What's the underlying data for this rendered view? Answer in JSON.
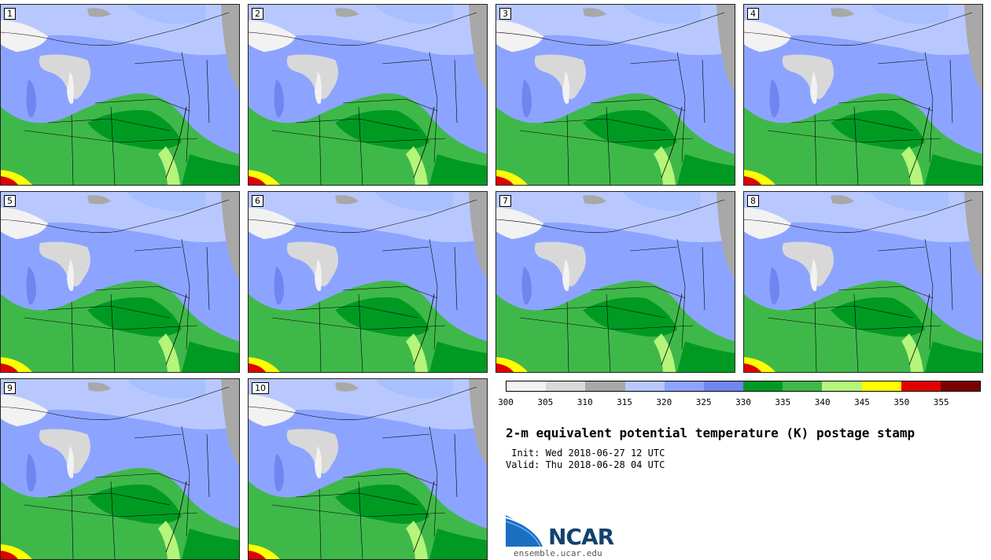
{
  "panels": [
    {
      "label": "1"
    },
    {
      "label": "2"
    },
    {
      "label": "3"
    },
    {
      "label": "4"
    },
    {
      "label": "5"
    },
    {
      "label": "6"
    },
    {
      "label": "7"
    },
    {
      "label": "8"
    },
    {
      "label": "9"
    },
    {
      "label": "10"
    }
  ],
  "colorbar": {
    "colors": [
      "#f2f2f2",
      "#d8d8d8",
      "#a8a8a8",
      "#b8c8ff",
      "#8ca4ff",
      "#6f85f0",
      "#009a23",
      "#3fb84a",
      "#b4f57a",
      "#ffff00",
      "#e00000",
      "#7a0000"
    ],
    "ticks": [
      "300",
      "305",
      "310",
      "315",
      "320",
      "325",
      "330",
      "335",
      "340",
      "345",
      "350",
      "355"
    ]
  },
  "title": "2-m equivalent potential temperature (K) postage stamp",
  "init": " Init: Wed 2018-06-27 12 UTC",
  "valid": "Valid: Thu 2018-06-28 04 UTC",
  "logo": {
    "text": "NCAR",
    "site": "ensemble.ucar.edu",
    "color": "#13426f"
  }
}
